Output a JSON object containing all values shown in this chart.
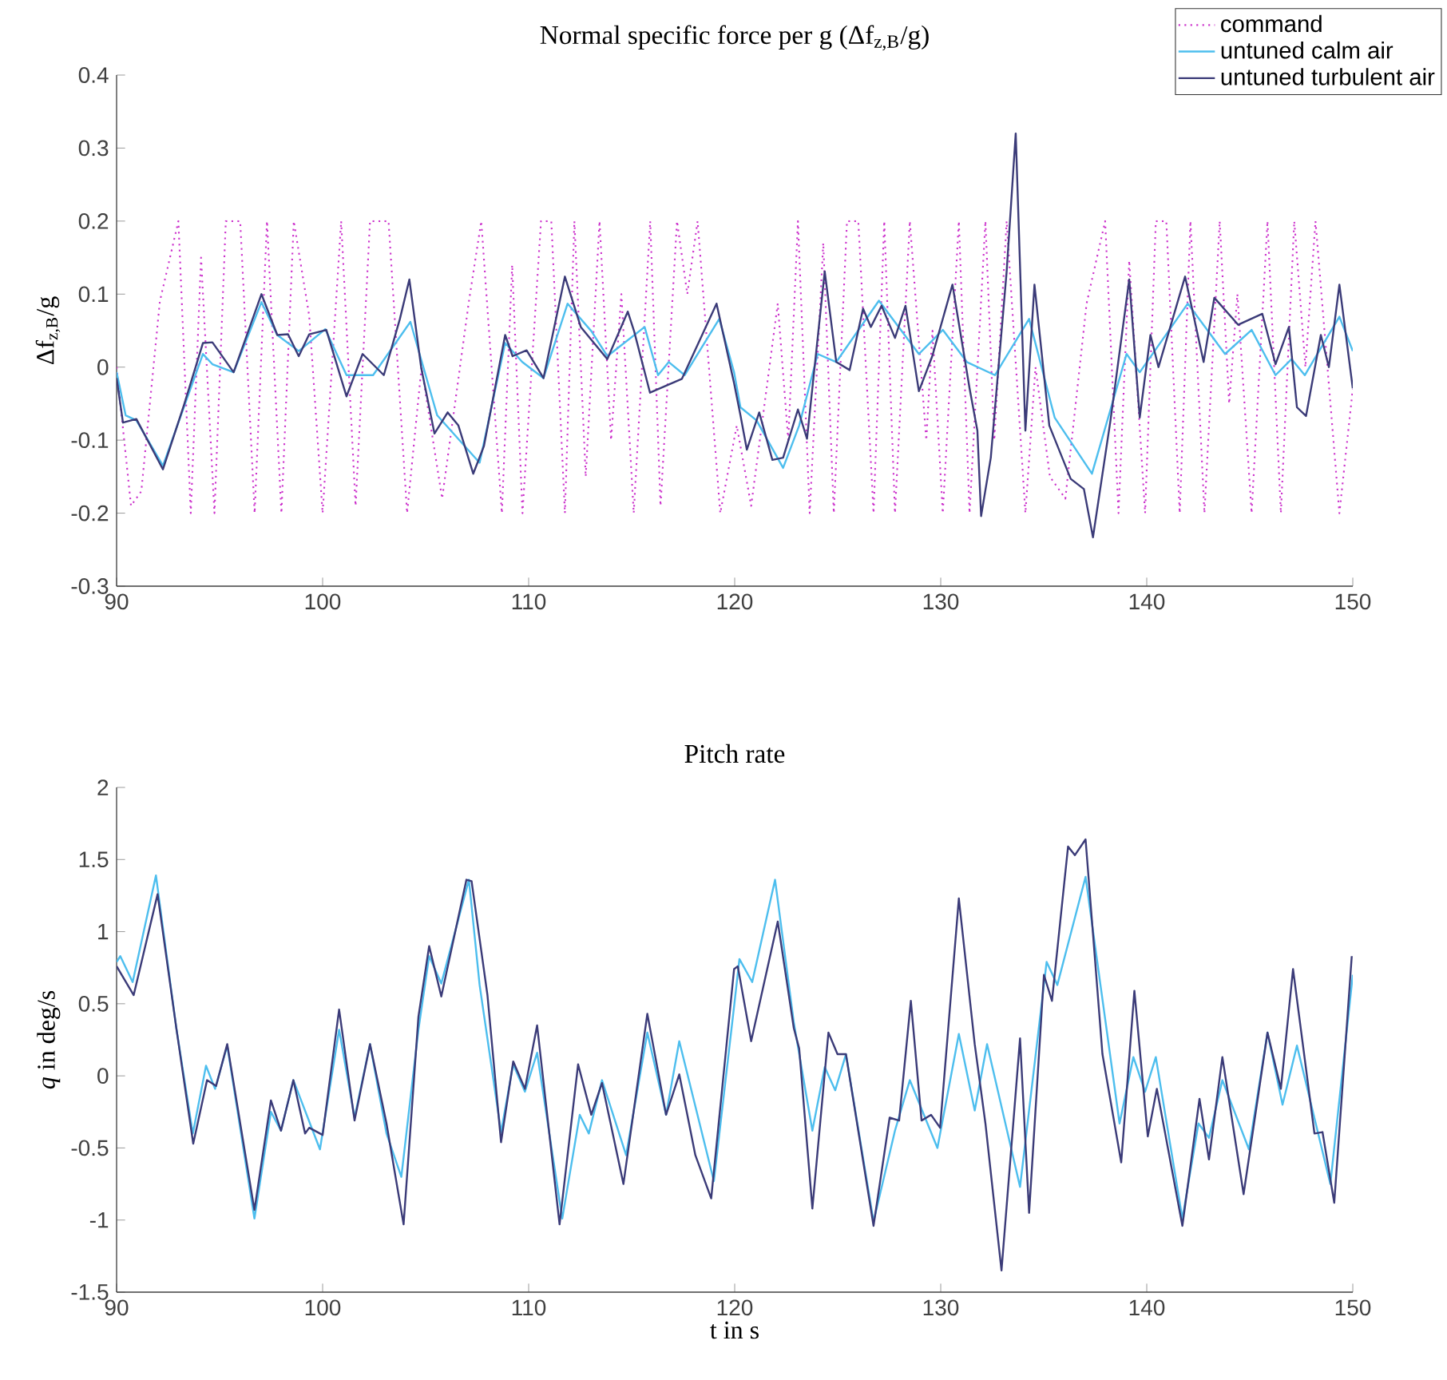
{
  "chart_data": [
    {
      "type": "line",
      "title": "Normal specific force per g (Δf$_{z,B}$/g)",
      "ylabel": "Δf$_{z,B}$/g",
      "xlim": [
        90,
        150
      ],
      "xticks": [
        90,
        100,
        110,
        120,
        130,
        140,
        150
      ],
      "ylim": [
        -0.3,
        0.4
      ],
      "yticks": [
        -0.3,
        -0.2,
        -0.1,
        0,
        0.1,
        0.2,
        0.3,
        0.4
      ],
      "legend": "top right",
      "series": [
        {
          "name": "command",
          "color": "#cc33cc",
          "line_style": "dotted",
          "x": [
            90,
            90.7,
            91.2,
            92.1,
            93.0,
            93.6,
            94.1,
            94.75,
            95.3,
            96.0,
            96.7,
            97.3,
            98.0,
            98.6,
            99.35,
            100.0,
            100.9,
            101.6,
            102.3,
            103.2,
            104.1,
            104.8,
            105.8,
            107.1,
            107.7,
            108.7,
            109.2,
            109.7,
            110.6,
            111.1,
            111.76,
            112.22,
            112.77,
            113.44,
            114.0,
            114.5,
            115.1,
            115.9,
            116.4,
            117.2,
            117.7,
            118.2,
            119.3,
            120.1,
            120.8,
            122.09,
            122.6,
            123.07,
            123.64,
            124.3,
            124.81,
            125.45,
            126.0,
            126.74,
            127.26,
            127.78,
            128.5,
            129.3,
            129.6,
            130.1,
            130.88,
            131.4,
            132.17,
            132.6,
            133.2,
            134.11,
            134.6,
            135.3,
            136.05,
            137.08,
            137.98,
            138.63,
            139.15,
            139.92,
            140.44,
            140.95,
            141.6,
            142.12,
            142.8,
            143.54,
            144.0,
            144.4,
            145.09,
            145.86,
            146.51,
            147.16,
            147.7,
            148.19,
            149.35,
            150
          ],
          "values": [
            0,
            -0.19,
            -0.17,
            0.09,
            0.2,
            -0.2,
            0.15,
            -0.2,
            0.2,
            0.2,
            -0.2,
            0.2,
            -0.2,
            0.2,
            0.07,
            -0.2,
            0.2,
            -0.19,
            0.2,
            0.2,
            -0.2,
            0,
            -0.18,
            0.09,
            0.2,
            -0.2,
            0.14,
            -0.2,
            0.2,
            0.2,
            -0.2,
            0.2,
            -0.15,
            0.2,
            -0.1,
            0.1,
            -0.2,
            0.2,
            -0.19,
            0.2,
            0.1,
            0.2,
            -0.2,
            -0.08,
            -0.19,
            0.087,
            -0.1,
            0.2,
            -0.2,
            0.17,
            -0.2,
            0.2,
            0.2,
            -0.2,
            0.2,
            -0.2,
            0.2,
            -0.1,
            0.05,
            -0.2,
            0.2,
            -0.2,
            0.2,
            -0.1,
            0.2,
            -0.2,
            0,
            -0.15,
            -0.18,
            0.087,
            0.2,
            -0.2,
            0.146,
            -0.2,
            0.2,
            0.2,
            -0.2,
            0.2,
            -0.2,
            0.2,
            -0.05,
            0.1,
            -0.2,
            0.2,
            -0.2,
            0.2,
            0,
            0.2,
            -0.2,
            -0.03
          ]
        },
        {
          "name": "untuned calm air",
          "color": "#4dbeee",
          "line_style": "solid",
          "x": [
            90,
            90.44,
            90.96,
            92.25,
            94.19,
            94.65,
            95.68,
            97.03,
            97.8,
            98.84,
            100.13,
            101.16,
            102.45,
            104.26,
            105.56,
            107.62,
            108.86,
            109.69,
            110.72,
            111.89,
            113.05,
            113.82,
            115.63,
            116.28,
            116.8,
            117.57,
            119.25,
            119.97,
            120.28,
            121.06,
            122.35,
            123.13,
            124.03,
            124.93,
            127.0,
            128.94,
            130.1,
            131.27,
            132.63,
            134.29,
            135.53,
            137.34,
            139.02,
            139.66,
            141.99,
            143.8,
            145.09,
            146.25,
            147.03,
            147.67,
            149.35,
            150
          ],
          "values": [
            -0.007,
            -0.066,
            -0.073,
            -0.135,
            0.018,
            0.004,
            -0.007,
            0.089,
            0.044,
            0.022,
            0.052,
            -0.011,
            -0.011,
            0.062,
            -0.066,
            -0.131,
            0.033,
            0.007,
            -0.015,
            0.087,
            0.049,
            0.015,
            0.055,
            -0.011,
            0.007,
            -0.011,
            0.066,
            -0.007,
            -0.055,
            -0.073,
            -0.138,
            -0.08,
            0.018,
            0.007,
            0.091,
            0.018,
            0.051,
            0.007,
            -0.011,
            0.066,
            -0.069,
            -0.146,
            0.018,
            -0.007,
            0.087,
            0.018,
            0.051,
            -0.011,
            0.011,
            -0.011,
            0.069,
            0.022
          ]
        },
        {
          "name": "untuned turbulent air",
          "color": "#3b3b78",
          "line_style": "solid",
          "x": [
            90,
            90.31,
            90.96,
            92.25,
            93.28,
            94.19,
            94.65,
            95.68,
            97.03,
            97.8,
            98.32,
            98.84,
            99.35,
            100.18,
            101.16,
            101.94,
            102.97,
            103.75,
            104.21,
            104.78,
            105.43,
            106.07,
            106.59,
            107.31,
            107.83,
            108.86,
            109.22,
            109.9,
            110.72,
            111.76,
            112.53,
            113.82,
            114.81,
            115.12,
            115.89,
            117.44,
            119.12,
            119.97,
            120.28,
            120.59,
            121.19,
            121.83,
            122.35,
            123.07,
            123.51,
            124.37,
            124.93,
            125.58,
            126.23,
            126.61,
            127.13,
            127.78,
            128.29,
            128.94,
            129.59,
            130.57,
            131.4,
            131.78,
            131.96,
            132.43,
            133.2,
            133.64,
            134.11,
            134.55,
            135.27,
            136.31,
            136.95,
            137.39,
            138.24,
            139.15,
            139.66,
            140.18,
            140.57,
            141.86,
            142.76,
            143.28,
            144.44,
            145.61,
            146.25,
            146.9,
            147.29,
            147.73,
            148.45,
            148.84,
            149.35,
            150
          ],
          "values": [
            -0.015,
            -0.076,
            -0.071,
            -0.14,
            -0.051,
            0.033,
            0.034,
            -0.007,
            0.1,
            0.044,
            0.045,
            0.015,
            0.045,
            0.051,
            -0.04,
            0.018,
            -0.011,
            0.066,
            0.12,
            0,
            -0.091,
            -0.062,
            -0.08,
            -0.146,
            -0.108,
            0.044,
            0.015,
            0.023,
            -0.015,
            0.124,
            0.055,
            0.011,
            0.076,
            0.049,
            -0.035,
            -0.016,
            0.087,
            -0.022,
            -0.066,
            -0.113,
            -0.062,
            -0.127,
            -0.124,
            -0.058,
            -0.098,
            0.131,
            0.007,
            -0.004,
            0.08,
            0.055,
            0.084,
            0.04,
            0.084,
            -0.033,
            0.015,
            0.113,
            -0.029,
            -0.087,
            -0.204,
            -0.124,
            0.131,
            0.32,
            -0.087,
            0.113,
            -0.08,
            -0.153,
            -0.167,
            -0.233,
            -0.073,
            0.12,
            -0.069,
            0.044,
            0,
            0.124,
            0.007,
            0.095,
            0.058,
            0.073,
            0.004,
            0.055,
            -0.055,
            -0.067,
            0.044,
            0,
            0.113,
            -0.029
          ]
        }
      ]
    },
    {
      "type": "line",
      "title": "Pitch rate",
      "xlabel": "t in s",
      "ylabel": "*q* in deg/s",
      "xlim": [
        90,
        150
      ],
      "xticks": [
        90,
        100,
        110,
        120,
        130,
        140,
        150
      ],
      "ylim": [
        -1.5,
        2
      ],
      "yticks": [
        -1.5,
        -1,
        -0.5,
        0,
        0.5,
        1,
        1.5,
        2
      ],
      "series": [
        {
          "color": "#4dbeee",
          "line_style": "solid",
          "x": [
            90,
            90.18,
            90.78,
            91.91,
            92.9,
            93.7,
            94.34,
            94.78,
            95.37,
            96.69,
            97.49,
            97.98,
            98.58,
            99.87,
            100.8,
            101.55,
            102.3,
            103.1,
            103.82,
            104.65,
            105.17,
            105.76,
            107.1,
            107.62,
            108.66,
            109.25,
            109.82,
            110.41,
            111.63,
            112.48,
            112.92,
            113.56,
            114.73,
            115.76,
            116.67,
            117.31,
            118.99,
            119.97,
            120.23,
            120.85,
            121.96,
            122.87,
            123.77,
            124.37,
            124.88,
            125.4,
            126.74,
            127.78,
            128.5,
            129.84,
            130.88,
            131.65,
            132.25,
            133.85,
            135.14,
            135.66,
            137.03,
            138.68,
            139.35,
            139.92,
            140.44,
            141.73,
            142.51,
            143.02,
            143.67,
            144.96,
            145.86,
            146.59,
            147.29,
            148.91,
            150
          ],
          "values": [
            0.79,
            0.83,
            0.65,
            1.39,
            0.33,
            -0.4,
            0.07,
            -0.09,
            0.21,
            -0.99,
            -0.25,
            -0.38,
            -0.03,
            -0.51,
            0.32,
            -0.29,
            0.22,
            -0.4,
            -0.7,
            0.32,
            0.83,
            0.64,
            1.36,
            0.63,
            -0.39,
            0.08,
            -0.11,
            0.16,
            -0.99,
            -0.27,
            -0.4,
            -0.03,
            -0.55,
            0.3,
            -0.27,
            0.24,
            -0.73,
            0.48,
            0.81,
            0.65,
            1.36,
            0.37,
            -0.38,
            0.06,
            -0.1,
            0.15,
            -1.01,
            -0.38,
            -0.03,
            -0.5,
            0.29,
            -0.24,
            0.22,
            -0.77,
            0.79,
            0.63,
            1.38,
            -0.33,
            0.13,
            -0.11,
            0.13,
            -0.99,
            -0.33,
            -0.43,
            -0.03,
            -0.51,
            0.3,
            -0.2,
            0.21,
            -0.75,
            0.7
          ]
        },
        {
          "color": "#3b3b78",
          "line_style": "solid",
          "x": [
            90,
            90.83,
            91.99,
            92.9,
            93.72,
            94.39,
            94.83,
            95.37,
            96.69,
            97.49,
            97.98,
            98.58,
            99.15,
            99.35,
            100.0,
            100.8,
            101.55,
            102.3,
            103.1,
            103.93,
            104.65,
            105.17,
            105.76,
            106.98,
            107.23,
            108.0,
            108.66,
            109.25,
            109.82,
            110.41,
            111.5,
            112.4,
            113.04,
            113.56,
            114.6,
            115.76,
            116.67,
            117.31,
            118.09,
            118.86,
            119.97,
            120.15,
            120.8,
            122.09,
            122.87,
            123.13,
            123.77,
            124.55,
            124.99,
            125.4,
            126.74,
            127.52,
            127.98,
            128.55,
            129.07,
            129.53,
            129.97,
            130.88,
            131.65,
            132.17,
            132.95,
            133.85,
            134.29,
            135.01,
            135.4,
            136.18,
            136.51,
            137.03,
            137.85,
            138.76,
            139.4,
            140.05,
            140.49,
            141.73,
            142.56,
            143.02,
            143.67,
            144.7,
            145.86,
            146.51,
            147.1,
            148.14,
            148.53,
            149.1,
            149.95
          ],
          "values": [
            0.76,
            0.56,
            1.26,
            0.33,
            -0.47,
            -0.03,
            -0.07,
            0.22,
            -0.93,
            -0.17,
            -0.38,
            -0.03,
            -0.4,
            -0.36,
            -0.41,
            0.46,
            -0.31,
            0.22,
            -0.33,
            -1.03,
            0.41,
            0.9,
            0.55,
            1.36,
            1.35,
            0.56,
            -0.46,
            0.1,
            -0.09,
            0.35,
            -1.03,
            0.08,
            -0.27,
            -0.05,
            -0.75,
            0.43,
            -0.27,
            0.01,
            -0.55,
            -0.85,
            0.74,
            0.76,
            0.24,
            1.07,
            0.33,
            0.19,
            -0.92,
            0.3,
            0.15,
            0.15,
            -1.04,
            -0.29,
            -0.31,
            0.52,
            -0.31,
            -0.27,
            -0.36,
            1.23,
            0.22,
            -0.33,
            -1.35,
            0.26,
            -0.95,
            0.7,
            0.52,
            1.59,
            1.53,
            1.64,
            0.15,
            -0.6,
            0.59,
            -0.42,
            -0.09,
            -1.04,
            -0.16,
            -0.58,
            0.13,
            -0.82,
            0.3,
            -0.09,
            0.74,
            -0.4,
            -0.39,
            -0.88,
            0.83
          ]
        }
      ]
    }
  ]
}
